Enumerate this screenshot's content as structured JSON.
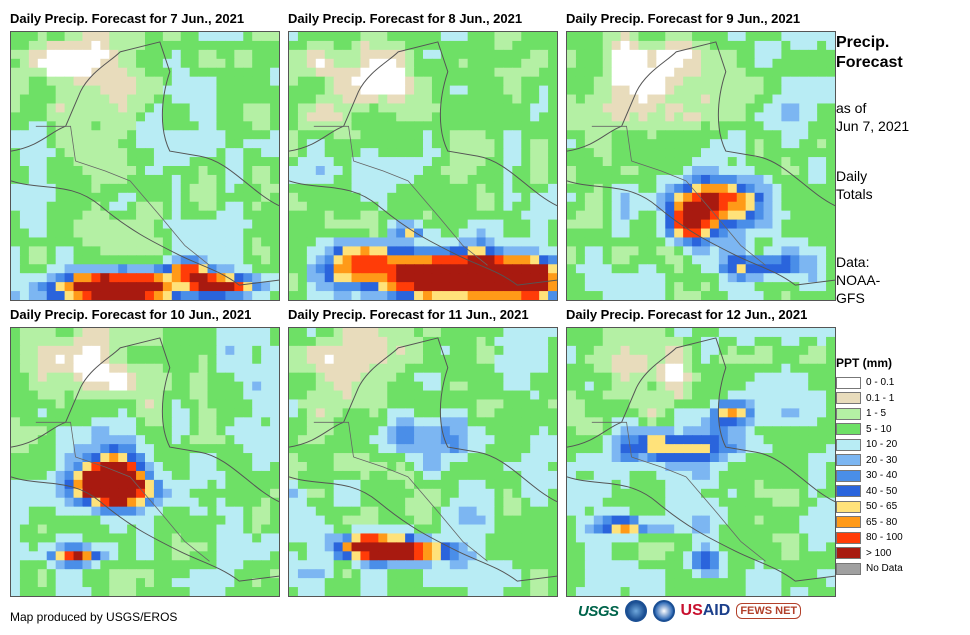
{
  "panels": [
    {
      "title": "Daily Precip. Forecast for 7 Jun., 2021",
      "day": 0
    },
    {
      "title": "Daily Precip. Forecast for 8 Jun., 2021",
      "day": 1
    },
    {
      "title": "Daily Precip. Forecast for 9 Jun., 2021",
      "day": 2
    },
    {
      "title": "Daily Precip. Forecast for 10 Jun., 2021",
      "day": 3
    },
    {
      "title": "Daily Precip. Forecast for 11 Jun., 2021",
      "day": 4
    },
    {
      "title": "Daily Precip. Forecast for 12 Jun., 2021",
      "day": 5
    }
  ],
  "side": {
    "title": "Precip. Forecast",
    "asof_label": "as of",
    "asof_date": "Jun 7, 2021",
    "totals": "Daily Totals",
    "data_label": "Data:",
    "data_source": "NOAA-GFS"
  },
  "legend": {
    "title": "PPT (mm)",
    "items": [
      {
        "label": "0 - 0.1",
        "color": "#ffffff"
      },
      {
        "label": "0.1 - 1",
        "color": "#e8dcbc"
      },
      {
        "label": "1 - 5",
        "color": "#b4f0a4"
      },
      {
        "label": "5 - 10",
        "color": "#6ee066"
      },
      {
        "label": "10 - 20",
        "color": "#b8ecf4"
      },
      {
        "label": "20 - 30",
        "color": "#7cb6f2"
      },
      {
        "label": "30 - 40",
        "color": "#4a8ee8"
      },
      {
        "label": "40 - 50",
        "color": "#2a64dc"
      },
      {
        "label": "50 - 65",
        "color": "#ffe27a"
      },
      {
        "label": "65 - 80",
        "color": "#ff9a18"
      },
      {
        "label": "80 - 100",
        "color": "#ff3c08"
      },
      {
        "label": "> 100",
        "color": "#a81a10"
      },
      {
        "label": "No Data",
        "color": "#a0a0a0"
      }
    ]
  },
  "footer": {
    "credit": "Map produced by USGS/EROS",
    "logos": {
      "usgs": "USGS",
      "usaid_us": "US",
      "usaid_aid": "AID",
      "fews": "FEWS NET"
    }
  }
}
